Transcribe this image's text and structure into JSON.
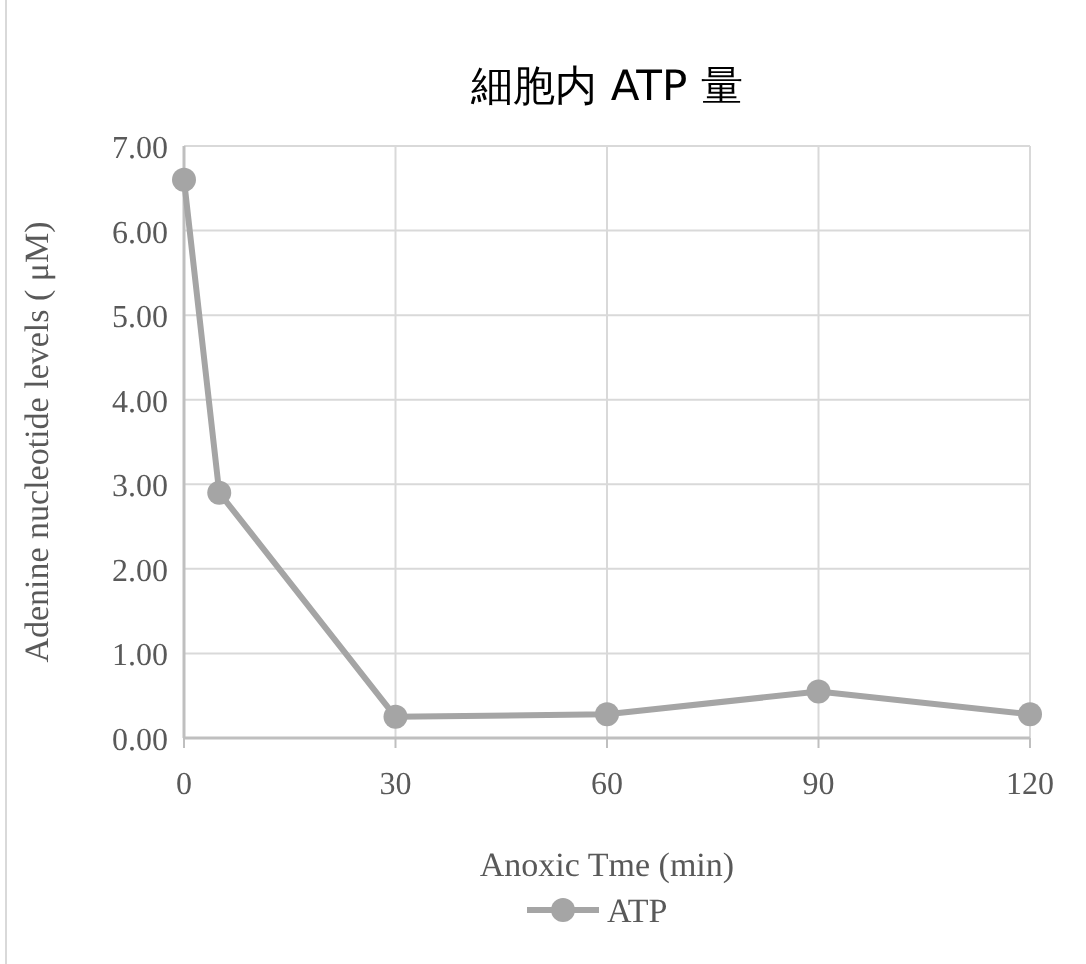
{
  "chart_data": {
    "type": "line",
    "title": "細胞内 ATP 量",
    "xlabel": "Anoxic Tme (min)",
    "ylabel": "Adenine nucleotide levels ( μM)",
    "x": [
      0,
      5,
      30,
      60,
      90,
      120
    ],
    "series": [
      {
        "name": "ATP",
        "color": "#a5a5a5",
        "values": [
          6.6,
          2.9,
          0.25,
          0.28,
          0.55,
          0.28
        ]
      }
    ],
    "xlim": [
      0,
      120
    ],
    "xticks": [
      0,
      30,
      60,
      90,
      120
    ],
    "ylim": [
      0,
      7
    ],
    "yticks": [
      {
        "value": 0,
        "label": "0.00"
      },
      {
        "value": 1,
        "label": "1.00"
      },
      {
        "value": 2,
        "label": "2.00"
      },
      {
        "value": 3,
        "label": "3.00"
      },
      {
        "value": 4,
        "label": "4.00"
      },
      {
        "value": 5,
        "label": "5.00"
      },
      {
        "value": 6,
        "label": "6.00"
      },
      {
        "value": 7,
        "label": "7.00"
      }
    ],
    "grid": true,
    "legend": "bottom",
    "marker": "circle",
    "line_style": "solid"
  }
}
